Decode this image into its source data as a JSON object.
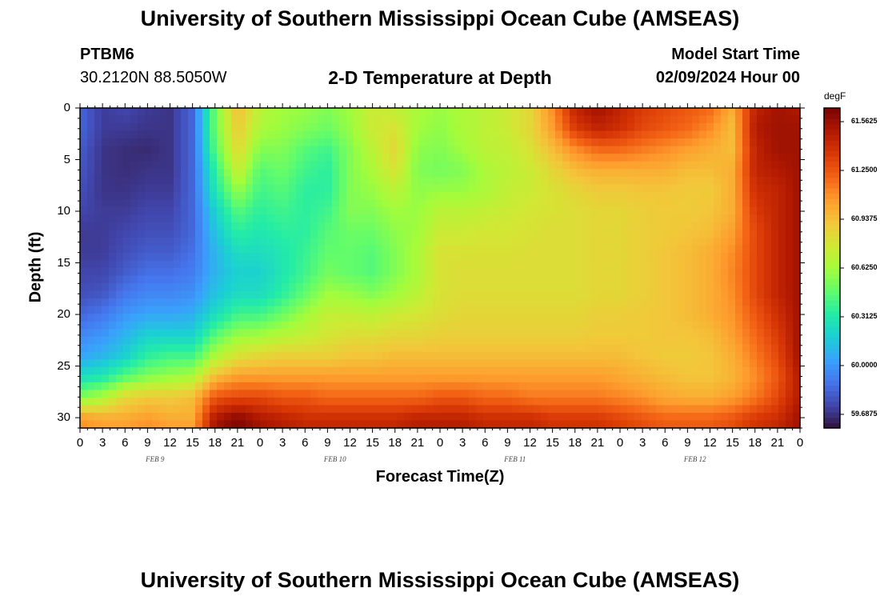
{
  "header": {
    "title": "University of Southern Mississippi Ocean Cube (AMSEAS)",
    "station": "PTBM6",
    "coords": "30.2120N  88.5050W",
    "subtitle": "2-D Temperature at Depth",
    "model_start_label": "Model Start Time",
    "model_start_value": "02/09/2024 Hour 00"
  },
  "footer": {
    "title": "University of Southern Mississippi Ocean Cube (AMSEAS)"
  },
  "colorbar": {
    "unit": "degF",
    "ticks": [
      "61.5625",
      "61.2500",
      "60.9375",
      "60.6250",
      "60.3125",
      "60.0000",
      "59.6875"
    ],
    "tick_values": [
      61.5625,
      61.25,
      60.9375,
      60.625,
      60.3125,
      60.0,
      59.6875
    ],
    "range": [
      59.6,
      61.65
    ],
    "colors": [
      "#30123b",
      "#4145ab",
      "#4675ed",
      "#39a2fc",
      "#1bcfd4",
      "#24eca6",
      "#61fc6c",
      "#a4fc3b",
      "#d1e834",
      "#f3c63a",
      "#fe9b2d",
      "#f36315",
      "#d93806",
      "#b11901",
      "#7a0403"
    ]
  },
  "chart_data": {
    "type": "heatmap",
    "title": "2-D Temperature at Depth",
    "xlabel": "Forecast Time(Z)",
    "ylabel": "Depth (ft)",
    "unit": "degF",
    "x_hours": [
      0,
      3,
      6,
      9,
      12,
      15,
      18,
      21,
      24,
      27,
      30,
      33,
      36,
      39,
      42,
      45,
      48,
      51,
      54,
      57,
      60,
      63,
      66,
      69,
      72,
      75,
      78,
      81,
      84,
      87,
      90,
      93,
      96
    ],
    "x_tick_labels": [
      "0",
      "3",
      "6",
      "9",
      "12",
      "15",
      "18",
      "21",
      "0",
      "3",
      "6",
      "9",
      "12",
      "15",
      "18",
      "21",
      "0",
      "3",
      "6",
      "9",
      "12",
      "15",
      "18",
      "21",
      "0",
      "3",
      "6",
      "9",
      "12",
      "15",
      "18",
      "21",
      "0"
    ],
    "day_labels": [
      {
        "label": "FEB 9",
        "hour": 10
      },
      {
        "label": "FEB 10",
        "hour": 34
      },
      {
        "label": "FEB 11",
        "hour": 58
      },
      {
        "label": "FEB 12",
        "hour": 82
      }
    ],
    "y_ticks": [
      0,
      5,
      10,
      15,
      20,
      25,
      30
    ],
    "y_tick_labels": [
      "0",
      "5",
      "10",
      "15",
      "20",
      "25",
      "30"
    ],
    "ylim": [
      0,
      31
    ],
    "xlim": [
      0,
      96
    ],
    "depths_ft": [
      0,
      2,
      4,
      6,
      8,
      10,
      12,
      14,
      16,
      18,
      20,
      22,
      24,
      26,
      28,
      30,
      31
    ],
    "values_degF": [
      [
        59.85,
        59.72,
        59.75,
        59.72,
        59.7,
        59.85,
        60.5,
        60.95,
        60.7,
        60.62,
        60.6,
        60.55,
        60.62,
        60.75,
        60.72,
        60.65,
        60.6,
        60.65,
        60.7,
        60.75,
        60.85,
        61.1,
        61.45,
        61.55,
        61.45,
        61.35,
        61.3,
        61.25,
        61.2,
        61.0,
        61.45,
        61.55,
        61.5
      ],
      [
        59.85,
        59.72,
        59.72,
        59.7,
        59.7,
        59.85,
        60.5,
        60.9,
        60.65,
        60.6,
        60.55,
        60.5,
        60.6,
        60.75,
        60.8,
        60.62,
        60.58,
        60.65,
        60.7,
        60.75,
        60.85,
        61.05,
        61.35,
        61.45,
        61.4,
        61.3,
        61.25,
        61.2,
        61.1,
        60.95,
        61.5,
        61.55,
        61.55
      ],
      [
        59.82,
        59.7,
        59.68,
        59.67,
        59.7,
        59.85,
        60.45,
        60.85,
        60.55,
        60.55,
        60.45,
        60.4,
        60.55,
        60.7,
        60.85,
        60.58,
        60.55,
        60.62,
        60.7,
        60.72,
        60.8,
        60.95,
        61.1,
        61.2,
        61.2,
        61.15,
        61.1,
        61.05,
        61.0,
        60.95,
        61.45,
        61.55,
        61.55
      ],
      [
        59.8,
        59.7,
        59.68,
        59.7,
        59.7,
        59.85,
        60.35,
        60.75,
        60.45,
        60.5,
        60.4,
        60.35,
        60.55,
        60.65,
        60.8,
        60.55,
        60.52,
        60.55,
        60.65,
        60.7,
        60.75,
        60.85,
        60.95,
        61.0,
        61.0,
        61.0,
        61.0,
        60.95,
        60.95,
        61.0,
        61.45,
        61.5,
        61.55
      ],
      [
        59.78,
        59.7,
        59.7,
        59.72,
        59.72,
        59.85,
        60.3,
        60.6,
        60.4,
        60.45,
        60.35,
        60.35,
        60.55,
        60.6,
        60.7,
        60.58,
        60.6,
        60.6,
        60.65,
        60.72,
        60.75,
        60.8,
        60.85,
        60.9,
        60.9,
        60.92,
        60.92,
        60.9,
        60.9,
        61.0,
        61.4,
        61.45,
        61.55
      ],
      [
        59.75,
        59.72,
        59.72,
        59.75,
        59.75,
        59.85,
        60.2,
        60.45,
        60.35,
        60.4,
        60.35,
        60.4,
        60.55,
        60.55,
        60.62,
        60.6,
        60.7,
        60.7,
        60.72,
        60.75,
        60.78,
        60.8,
        60.82,
        60.85,
        60.85,
        60.88,
        60.9,
        60.9,
        60.92,
        61.0,
        61.35,
        61.45,
        61.55
      ],
      [
        59.72,
        59.72,
        59.75,
        59.78,
        59.78,
        59.85,
        60.15,
        60.35,
        60.3,
        60.35,
        60.35,
        60.45,
        60.5,
        60.5,
        60.58,
        60.62,
        60.75,
        60.75,
        60.78,
        60.78,
        60.8,
        60.82,
        60.82,
        60.85,
        60.85,
        60.88,
        60.9,
        60.92,
        60.95,
        61.05,
        61.3,
        61.45,
        61.55
      ],
      [
        59.72,
        59.72,
        59.78,
        59.82,
        59.82,
        59.88,
        60.1,
        60.25,
        60.25,
        60.3,
        60.38,
        60.48,
        60.48,
        60.45,
        60.55,
        60.65,
        60.8,
        60.8,
        60.8,
        60.8,
        60.82,
        60.82,
        60.82,
        60.85,
        60.85,
        60.88,
        60.92,
        60.95,
        61.0,
        61.1,
        61.3,
        61.45,
        61.55
      ],
      [
        59.75,
        59.75,
        59.82,
        59.88,
        59.88,
        59.92,
        60.1,
        60.2,
        60.2,
        60.3,
        60.4,
        60.52,
        60.48,
        60.45,
        60.55,
        60.65,
        60.8,
        60.82,
        60.82,
        60.82,
        60.82,
        60.82,
        60.82,
        60.85,
        60.85,
        60.88,
        60.92,
        60.95,
        61.0,
        61.12,
        61.3,
        61.45,
        61.55
      ],
      [
        59.78,
        59.8,
        59.9,
        59.95,
        59.95,
        59.98,
        60.15,
        60.25,
        60.25,
        60.35,
        60.48,
        60.62,
        60.6,
        60.55,
        60.62,
        60.7,
        60.8,
        60.82,
        60.82,
        60.82,
        60.82,
        60.82,
        60.82,
        60.85,
        60.85,
        60.88,
        60.92,
        60.95,
        61.0,
        61.1,
        61.3,
        61.45,
        61.55
      ],
      [
        59.85,
        59.9,
        60.0,
        60.05,
        60.05,
        60.08,
        60.25,
        60.4,
        60.4,
        60.5,
        60.62,
        60.72,
        60.72,
        60.7,
        60.75,
        60.78,
        60.82,
        60.85,
        60.85,
        60.85,
        60.85,
        60.85,
        60.85,
        60.88,
        60.88,
        60.9,
        60.92,
        60.95,
        61.0,
        61.08,
        61.25,
        61.4,
        61.55
      ],
      [
        59.95,
        60.0,
        60.1,
        60.2,
        60.2,
        60.2,
        60.45,
        60.6,
        60.62,
        60.68,
        60.72,
        60.78,
        60.82,
        60.82,
        60.85,
        60.85,
        60.88,
        60.88,
        60.88,
        60.88,
        60.88,
        60.88,
        60.88,
        60.9,
        60.9,
        60.9,
        60.92,
        60.92,
        60.95,
        61.05,
        61.2,
        61.35,
        61.55
      ],
      [
        60.05,
        60.1,
        60.2,
        60.35,
        60.4,
        60.4,
        60.65,
        60.8,
        60.85,
        60.88,
        60.88,
        60.88,
        60.92,
        60.92,
        60.95,
        60.95,
        60.95,
        60.95,
        60.95,
        60.95,
        60.95,
        60.95,
        60.95,
        60.95,
        60.95,
        60.92,
        60.9,
        60.9,
        60.92,
        61.0,
        61.15,
        61.3,
        61.55
      ],
      [
        60.25,
        60.3,
        60.45,
        60.55,
        60.6,
        60.65,
        60.95,
        61.05,
        61.05,
        61.05,
        61.05,
        61.05,
        61.05,
        61.05,
        61.05,
        61.05,
        61.05,
        61.05,
        61.05,
        61.05,
        61.05,
        61.05,
        61.05,
        61.05,
        61.02,
        60.98,
        60.95,
        60.92,
        60.92,
        60.98,
        61.1,
        61.25,
        61.5
      ],
      [
        60.55,
        60.65,
        60.85,
        60.9,
        60.9,
        60.95,
        61.25,
        61.3,
        61.3,
        61.25,
        61.25,
        61.2,
        61.2,
        61.2,
        61.2,
        61.2,
        61.25,
        61.25,
        61.2,
        61.2,
        61.15,
        61.15,
        61.15,
        61.15,
        61.12,
        61.08,
        61.02,
        61.0,
        61.0,
        61.05,
        61.15,
        61.3,
        61.5
      ],
      [
        61.05,
        61.0,
        61.0,
        61.05,
        61.0,
        61.0,
        61.5,
        61.6,
        61.5,
        61.45,
        61.4,
        61.4,
        61.4,
        61.4,
        61.4,
        61.45,
        61.45,
        61.45,
        61.4,
        61.4,
        61.4,
        61.35,
        61.35,
        61.35,
        61.3,
        61.25,
        61.2,
        61.2,
        61.2,
        61.25,
        61.35,
        61.4,
        61.55
      ],
      [
        61.1,
        61.05,
        61.05,
        61.1,
        61.05,
        61.05,
        61.55,
        61.65,
        61.55,
        61.5,
        61.45,
        61.45,
        61.45,
        61.45,
        61.45,
        61.5,
        61.5,
        61.5,
        61.45,
        61.45,
        61.45,
        61.4,
        61.4,
        61.4,
        61.35,
        61.3,
        61.25,
        61.25,
        61.25,
        61.3,
        61.4,
        61.45,
        61.55
      ]
    ]
  }
}
